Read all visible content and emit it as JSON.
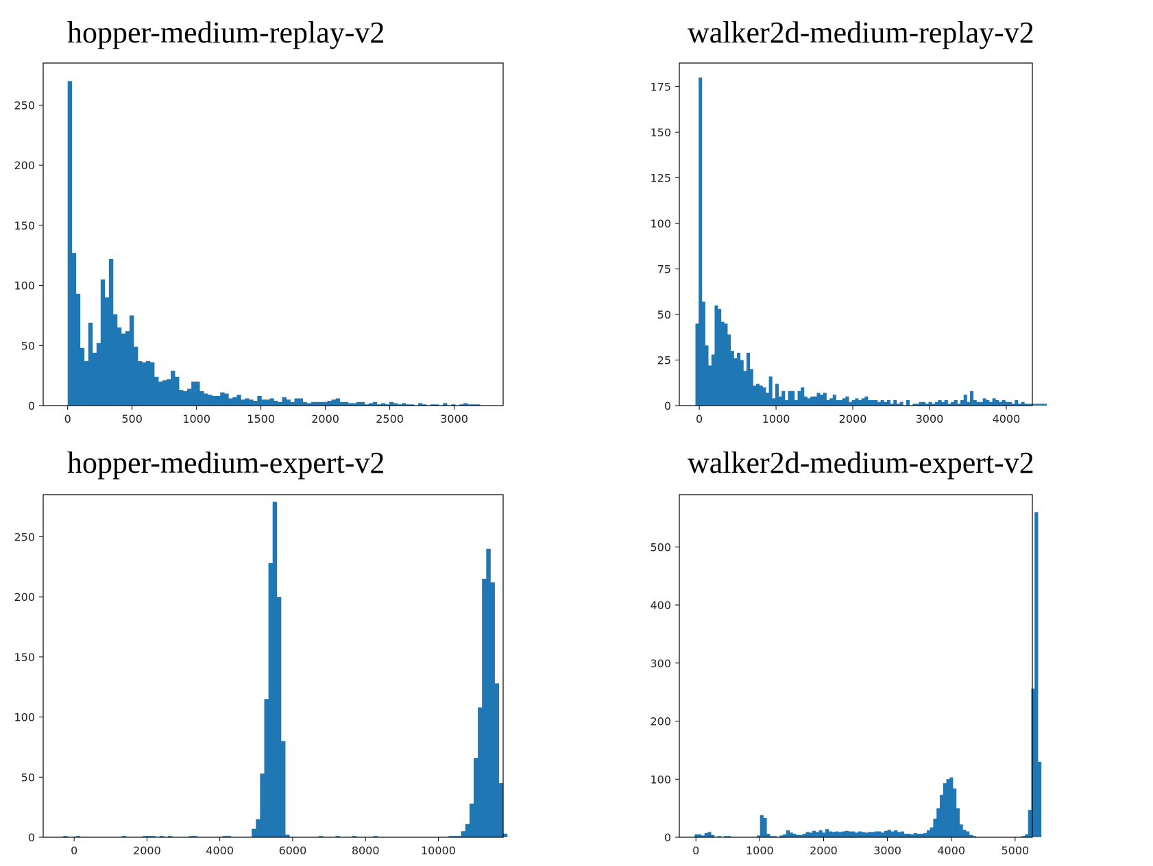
{
  "chart_data": [
    {
      "type": "bar",
      "title": "hopper-medium-replay-v2",
      "color": "#1f77b4",
      "xlim": [
        -190,
        3380
      ],
      "ylim": [
        0,
        285
      ],
      "x_ticks": [
        0,
        500,
        1000,
        1500,
        2000,
        2500,
        3000
      ],
      "y_ticks": [
        0,
        50,
        100,
        150,
        200,
        250
      ],
      "bin_start": 0,
      "bin_width": 32,
      "values": [
        270,
        127,
        93,
        48,
        37,
        69,
        44,
        52,
        105,
        90,
        122,
        76,
        65,
        60,
        62,
        75,
        49,
        37,
        36,
        37,
        36,
        24,
        20,
        21,
        22,
        29,
        24,
        13,
        12,
        14,
        20,
        20,
        12,
        10,
        9,
        8,
        8,
        11,
        10,
        6,
        7,
        9,
        5,
        6,
        5,
        4,
        8,
        5,
        5,
        6,
        4,
        3,
        7,
        5,
        3,
        6,
        6,
        3,
        2,
        3,
        3,
        3,
        3,
        4,
        5,
        6,
        3,
        3,
        2,
        2,
        3,
        3,
        1,
        2,
        3,
        1,
        2,
        1,
        3,
        2,
        1,
        2,
        1,
        1,
        0,
        2,
        1,
        0,
        1,
        1,
        0,
        2,
        0,
        1,
        0,
        1,
        2,
        1,
        1,
        1
      ]
    },
    {
      "type": "bar",
      "title": "walker2d-medium-replay-v2",
      "color": "#1f77b4",
      "xlim": [
        -260,
        4340
      ],
      "ylim": [
        0,
        188
      ],
      "x_ticks": [
        0,
        1000,
        2000,
        3000,
        4000
      ],
      "y_ticks": [
        0,
        25,
        50,
        75,
        100,
        125,
        150,
        175
      ],
      "bin_start": -50,
      "bin_width": 41.6,
      "values": [
        45,
        180,
        57,
        33,
        22,
        28,
        55,
        53,
        46,
        45,
        39,
        30,
        26,
        29,
        25,
        19,
        29,
        20,
        11,
        12,
        11,
        10,
        7,
        16,
        4,
        12,
        5,
        8,
        3,
        8,
        8,
        3,
        8,
        10,
        5,
        4,
        5,
        5,
        7,
        6,
        7,
        3,
        4,
        6,
        3,
        3,
        4,
        5,
        2,
        3,
        4,
        3,
        4,
        5,
        3,
        3,
        3,
        2,
        3,
        2,
        3,
        1,
        3,
        1,
        2,
        0,
        3,
        0,
        1,
        1,
        2,
        2,
        1,
        2,
        1,
        2,
        3,
        2,
        3,
        1,
        2,
        3,
        1,
        3,
        6,
        2,
        8,
        3,
        2,
        2,
        4,
        3,
        2,
        4,
        3,
        2,
        3,
        2,
        2,
        1,
        3,
        1,
        2,
        1,
        1,
        1,
        1,
        1,
        1,
        1
      ]
    },
    {
      "type": "bar",
      "title": "hopper-medium-expert-v2",
      "color": "#1f77b4",
      "xlim": [
        -850,
        11780
      ],
      "ylim": [
        0,
        285
      ],
      "x_ticks": [
        0,
        2000,
        4000,
        6000,
        8000,
        10000
      ],
      "y_ticks": [
        0,
        50,
        100,
        150,
        200,
        250
      ],
      "bin_start": -300,
      "bin_width": 115,
      "values": [
        1,
        0,
        0,
        1,
        0,
        0,
        0,
        0,
        0,
        0,
        0,
        0,
        0,
        0,
        1,
        0,
        0,
        0,
        0,
        1,
        1,
        1,
        0,
        1,
        0,
        1,
        0,
        0,
        0,
        0,
        1,
        1,
        0,
        0,
        0,
        0,
        0,
        0,
        1,
        1,
        0,
        0,
        0,
        0,
        0,
        7,
        15,
        53,
        115,
        228,
        279,
        200,
        80,
        2,
        0,
        0,
        0,
        0,
        0,
        0,
        0,
        1,
        0,
        0,
        0,
        1,
        0,
        0,
        0,
        1,
        0,
        0,
        0,
        0,
        1,
        0,
        0,
        0,
        0,
        0,
        0,
        0,
        0,
        0,
        0,
        0,
        0,
        0,
        0,
        0,
        0,
        0,
        1,
        1,
        1,
        5,
        11,
        28,
        66,
        108,
        215,
        240,
        212,
        128,
        45,
        3
      ]
    },
    {
      "type": "bar",
      "title": "walker2d-medium-expert-v2",
      "color": "#1f77b4",
      "xlim": [
        -260,
        5270
      ],
      "ylim": [
        0,
        590
      ],
      "x_ticks": [
        0,
        1000,
        2000,
        3000,
        4000,
        5000
      ],
      "y_ticks": [
        0,
        100,
        200,
        300,
        400,
        500
      ],
      "bin_start": -20,
      "bin_width": 51.2,
      "values": [
        5,
        5,
        3,
        7,
        9,
        4,
        0,
        2,
        0,
        2,
        2,
        0,
        0,
        0,
        0,
        0,
        0,
        0,
        0,
        3,
        38,
        33,
        6,
        2,
        2,
        0,
        3,
        5,
        12,
        8,
        6,
        4,
        4,
        6,
        9,
        8,
        11,
        9,
        12,
        8,
        14,
        10,
        9,
        10,
        9,
        10,
        11,
        10,
        10,
        8,
        10,
        9,
        8,
        9,
        9,
        10,
        10,
        8,
        11,
        13,
        10,
        12,
        9,
        10,
        6,
        6,
        5,
        7,
        6,
        6,
        7,
        12,
        17,
        32,
        50,
        73,
        93,
        100,
        103,
        84,
        50,
        22,
        13,
        10,
        4,
        2,
        0,
        0,
        0,
        0,
        0,
        0,
        0,
        0,
        0,
        0,
        0,
        0,
        0,
        0,
        2,
        5,
        47,
        256,
        560,
        130
      ]
    }
  ]
}
